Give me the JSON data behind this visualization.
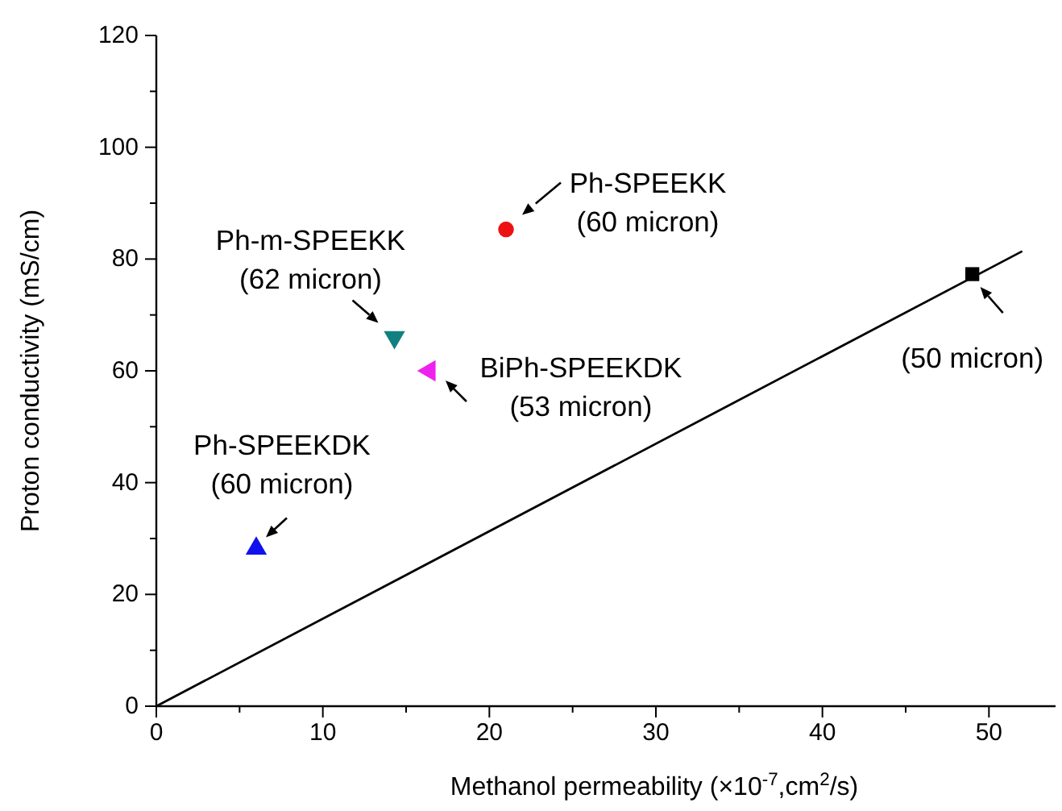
{
  "chart_data": {
    "type": "scatter",
    "xlabel": "Methanol permeability (×10$^{-7}$,cm$^{2}$/s)",
    "ylabel": "Proton conductivity (mS/cm)",
    "xlim": [
      0,
      54
    ],
    "ylim": [
      0,
      120
    ],
    "xticks": [
      0,
      {
        "value": 5,
        "label": null
      },
      10,
      {
        "value": 15,
        "label": null
      },
      20,
      {
        "value": 25,
        "label": null
      },
      30,
      {
        "value": 35,
        "label": null
      },
      40,
      {
        "value": 45,
        "label": null
      },
      50
    ],
    "yticks": [
      0,
      {
        "value": 10,
        "label": null
      },
      20,
      {
        "value": 30,
        "label": null
      },
      40,
      {
        "value": 50,
        "label": null
      },
      60,
      {
        "value": 70,
        "label": null
      },
      80,
      {
        "value": 90,
        "label": null
      },
      100,
      {
        "value": 110,
        "label": null
      },
      120
    ],
    "grid": false,
    "series": [
      {
        "color": "#ee1111",
        "marker": "circle",
        "x": [
          21.0
        ],
        "values": [
          85.3
        ]
      },
      {
        "color": "#118080",
        "marker": "triangle-down",
        "x": [
          14.3
        ],
        "values": [
          66
        ]
      },
      {
        "color": "#ee22ee",
        "marker": "triangle-left",
        "x": [
          16.4
        ],
        "values": [
          60
        ]
      },
      {
        "color": "#1111ee",
        "marker": "triangle",
        "x": [
          6.0
        ],
        "values": [
          28.2
        ]
      },
      {
        "color": "#000000",
        "marker": "square",
        "x": [
          49.0
        ],
        "values": [
          77.3
        ]
      },
      {
        "type": "line",
        "color": "#000000",
        "x": [
          0,
          52
        ],
        "values": [
          0,
          81.4
        ]
      }
    ],
    "annotations": [
      {
        "text": "Ph-SPEEKK\n(60 micron)",
        "x": 21.0,
        "y": 85.3
      },
      {
        "text": "Ph-m-SPEEKK\n(62 micron)",
        "x": 14.3,
        "y": 66
      },
      {
        "text": "BiPh-SPEEKDK\n(53 micron)",
        "x": 16.4,
        "y": 60
      },
      {
        "text": "Ph-SPEEKDK\n(60 micron)",
        "x": 6.0,
        "y": 28.2
      },
      {
        "text": "(50 micron)",
        "x": 49.0,
        "y": 77.3
      }
    ]
  }
}
